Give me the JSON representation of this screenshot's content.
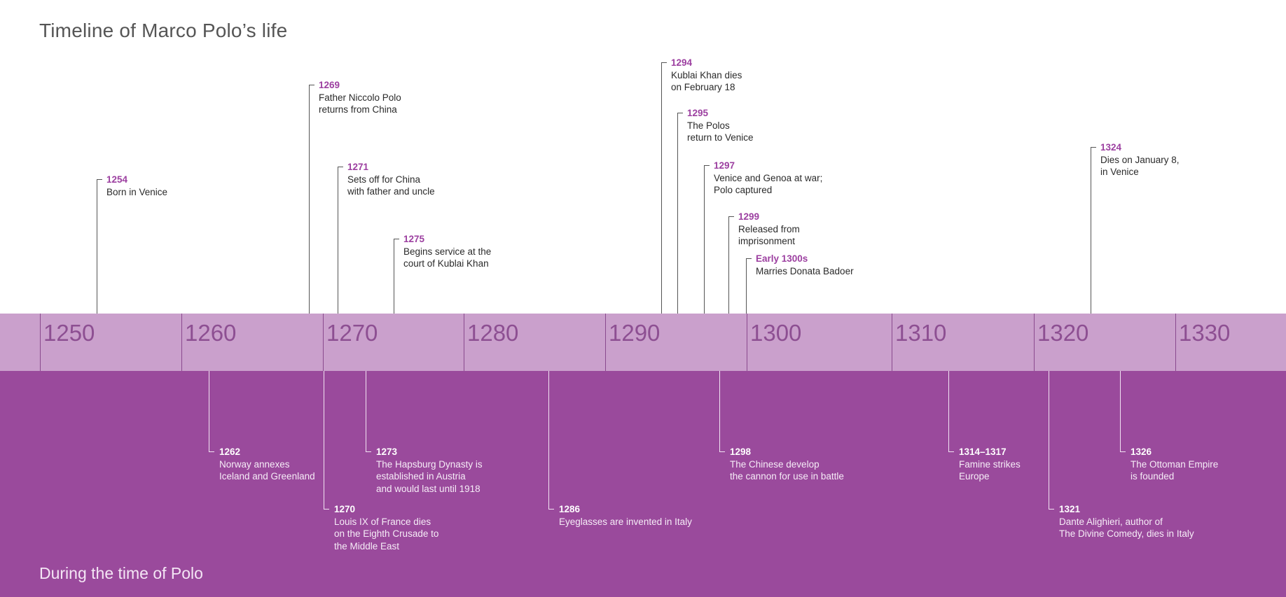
{
  "title": "Timeline of Marco Polo’s life",
  "lower_title": "During the time of Polo",
  "colors": {
    "axis_band": "#caa0cc",
    "lower_band": "#9a4a9c",
    "accent_purple": "#9c3fa0",
    "decade_label": "#8d4f92"
  },
  "decades": [
    "1250",
    "1260",
    "1270",
    "1280",
    "1290",
    "1300",
    "1310",
    "1320",
    "1330"
  ],
  "polo_events": [
    {
      "year": "1254",
      "lines": [
        "Born in Venice"
      ]
    },
    {
      "year": "1269",
      "lines": [
        "Father Niccolo Polo",
        "returns from China"
      ]
    },
    {
      "year": "1271",
      "lines": [
        "Sets off for China",
        "with father and uncle"
      ]
    },
    {
      "year": "1275",
      "lines": [
        "Begins service at the",
        "court of Kublai Khan"
      ]
    },
    {
      "year": "1294",
      "lines": [
        "Kublai Khan dies",
        "on February 18"
      ]
    },
    {
      "year": "1295",
      "lines": [
        "The Polos",
        "return to Venice"
      ]
    },
    {
      "year": "1297",
      "lines": [
        "Venice and Genoa at war;",
        "Polo captured"
      ]
    },
    {
      "year": "1299",
      "lines": [
        "Released from",
        "imprisonment"
      ]
    },
    {
      "year": "Early 1300s",
      "lines": [
        "Marries Donata Badoer"
      ]
    },
    {
      "year": "1324",
      "lines": [
        "Dies on January 8,",
        "in Venice"
      ]
    }
  ],
  "world_events": [
    {
      "year": "1262",
      "lines": [
        "Norway annexes",
        "Iceland and Greenland"
      ]
    },
    {
      "year": "1273",
      "lines": [
        "The Hapsburg Dynasty is",
        "established in Austria",
        "and would last until 1918"
      ]
    },
    {
      "year": "1270",
      "lines": [
        "Louis IX of France dies",
        "on the Eighth Crusade to",
        "the Middle East"
      ]
    },
    {
      "year": "1286",
      "lines": [
        "Eyeglasses are invented in Italy"
      ]
    },
    {
      "year": "1298",
      "lines": [
        "The Chinese develop",
        "the cannon for use in battle"
      ]
    },
    {
      "year": "1314–1317",
      "lines": [
        "Famine strikes",
        "Europe"
      ]
    },
    {
      "year": "1326",
      "lines": [
        "The Ottoman Empire",
        "is founded"
      ]
    },
    {
      "year": "1321",
      "lines": [
        "Dante Alighieri, author of",
        "The Divine Comedy, dies in Italy"
      ]
    }
  ]
}
